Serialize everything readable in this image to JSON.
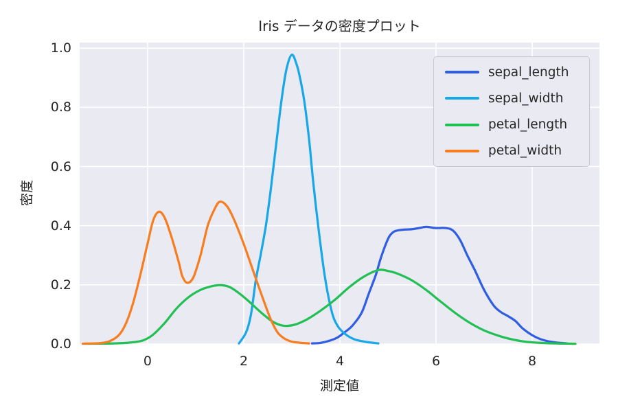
{
  "title": "Iris データの密度プロット",
  "axes": {
    "xlabel": "測定値",
    "ylabel": "密度",
    "x_ticks": [
      0,
      2,
      4,
      6,
      8
    ],
    "y_ticks": [
      0.0,
      0.2,
      0.4,
      0.6,
      0.8,
      1.0
    ]
  },
  "styles": {
    "plot_background": "#eaeaf2",
    "grid_color": "#ffffff",
    "text_color": "#262626",
    "legend_background": "#eaeaf2",
    "legend_border": "#c8c8d2"
  },
  "chart_data": {
    "type": "line",
    "subtype": "kde-density",
    "title": "Iris データの密度プロット",
    "xlabel": "測定値",
    "ylabel": "密度",
    "xlim": [
      -1.414,
      9.4
    ],
    "ylim": [
      0,
      1.019
    ],
    "grid": true,
    "legend_position": "upper right",
    "series": [
      {
        "name": "sepal_length",
        "color": "#2f5ee2",
        "points": [
          [
            3.42,
            0.002
          ],
          [
            3.6,
            0.004
          ],
          [
            3.8,
            0.012
          ],
          [
            3.95,
            0.022
          ],
          [
            4.1,
            0.04
          ],
          [
            4.26,
            0.062
          ],
          [
            4.45,
            0.105
          ],
          [
            4.6,
            0.17
          ],
          [
            4.75,
            0.235
          ],
          [
            4.85,
            0.29
          ],
          [
            5.0,
            0.355
          ],
          [
            5.1,
            0.377
          ],
          [
            5.2,
            0.384
          ],
          [
            5.35,
            0.387
          ],
          [
            5.5,
            0.388
          ],
          [
            5.65,
            0.392
          ],
          [
            5.8,
            0.396
          ],
          [
            6.0,
            0.392
          ],
          [
            6.2,
            0.392
          ],
          [
            6.35,
            0.384
          ],
          [
            6.5,
            0.352
          ],
          [
            6.65,
            0.3
          ],
          [
            6.8,
            0.252
          ],
          [
            7.0,
            0.183
          ],
          [
            7.2,
            0.13
          ],
          [
            7.35,
            0.108
          ],
          [
            7.5,
            0.094
          ],
          [
            7.65,
            0.078
          ],
          [
            7.8,
            0.053
          ],
          [
            8.0,
            0.03
          ],
          [
            8.2,
            0.015
          ],
          [
            8.45,
            0.006
          ],
          [
            8.72,
            0.002
          ]
        ]
      },
      {
        "name": "sepal_width",
        "color": "#18a8e8",
        "points": [
          [
            1.9,
            0.002
          ],
          [
            2.05,
            0.04
          ],
          [
            2.15,
            0.1
          ],
          [
            2.25,
            0.215
          ],
          [
            2.35,
            0.3
          ],
          [
            2.46,
            0.4
          ],
          [
            2.56,
            0.52
          ],
          [
            2.67,
            0.67
          ],
          [
            2.79,
            0.83
          ],
          [
            2.89,
            0.93
          ],
          [
            3.0,
            0.978
          ],
          [
            3.1,
            0.945
          ],
          [
            3.17,
            0.9
          ],
          [
            3.26,
            0.82
          ],
          [
            3.36,
            0.69
          ],
          [
            3.45,
            0.54
          ],
          [
            3.57,
            0.37
          ],
          [
            3.69,
            0.225
          ],
          [
            3.83,
            0.11
          ],
          [
            3.95,
            0.062
          ],
          [
            4.1,
            0.035
          ],
          [
            4.3,
            0.016
          ],
          [
            4.55,
            0.007
          ],
          [
            4.8,
            0.002
          ]
        ]
      },
      {
        "name": "petal_length",
        "color": "#22bf55",
        "points": [
          [
            -1.3,
            0.001
          ],
          [
            -0.7,
            0.002
          ],
          [
            -0.35,
            0.005
          ],
          [
            -0.1,
            0.012
          ],
          [
            0.1,
            0.03
          ],
          [
            0.35,
            0.07
          ],
          [
            0.6,
            0.12
          ],
          [
            0.85,
            0.158
          ],
          [
            1.1,
            0.183
          ],
          [
            1.3,
            0.194
          ],
          [
            1.5,
            0.199
          ],
          [
            1.7,
            0.193
          ],
          [
            1.9,
            0.172
          ],
          [
            2.1,
            0.145
          ],
          [
            2.35,
            0.108
          ],
          [
            2.6,
            0.076
          ],
          [
            2.82,
            0.062
          ],
          [
            3.05,
            0.065
          ],
          [
            3.3,
            0.082
          ],
          [
            3.6,
            0.113
          ],
          [
            3.9,
            0.15
          ],
          [
            4.2,
            0.193
          ],
          [
            4.5,
            0.228
          ],
          [
            4.8,
            0.25
          ],
          [
            5.0,
            0.247
          ],
          [
            5.2,
            0.238
          ],
          [
            5.5,
            0.215
          ],
          [
            5.8,
            0.182
          ],
          [
            6.1,
            0.143
          ],
          [
            6.4,
            0.105
          ],
          [
            6.7,
            0.072
          ],
          [
            7.0,
            0.046
          ],
          [
            7.3,
            0.028
          ],
          [
            7.6,
            0.015
          ],
          [
            7.9,
            0.007
          ],
          [
            8.3,
            0.003
          ],
          [
            8.9,
            0.001
          ]
        ]
      },
      {
        "name": "petal_width",
        "color": "#f67d20",
        "points": [
          [
            -1.35,
            0.001
          ],
          [
            -1.0,
            0.003
          ],
          [
            -0.8,
            0.009
          ],
          [
            -0.6,
            0.03
          ],
          [
            -0.45,
            0.07
          ],
          [
            -0.3,
            0.14
          ],
          [
            -0.15,
            0.235
          ],
          [
            0.0,
            0.34
          ],
          [
            0.12,
            0.42
          ],
          [
            0.24,
            0.447
          ],
          [
            0.36,
            0.425
          ],
          [
            0.5,
            0.36
          ],
          [
            0.65,
            0.275
          ],
          [
            0.72,
            0.23
          ],
          [
            0.82,
            0.207
          ],
          [
            0.95,
            0.225
          ],
          [
            1.1,
            0.3
          ],
          [
            1.25,
            0.4
          ],
          [
            1.38,
            0.452
          ],
          [
            1.5,
            0.481
          ],
          [
            1.65,
            0.466
          ],
          [
            1.8,
            0.42
          ],
          [
            2.0,
            0.338
          ],
          [
            2.2,
            0.245
          ],
          [
            2.38,
            0.162
          ],
          [
            2.55,
            0.088
          ],
          [
            2.7,
            0.04
          ],
          [
            2.85,
            0.018
          ],
          [
            3.0,
            0.008
          ],
          [
            3.18,
            0.004
          ],
          [
            3.36,
            0.002
          ]
        ]
      }
    ]
  }
}
